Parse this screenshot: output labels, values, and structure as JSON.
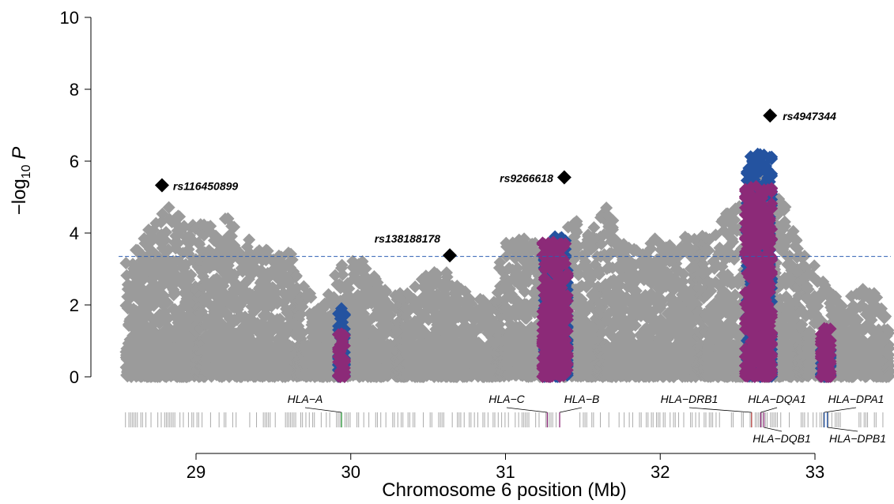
{
  "chart_data": {
    "type": "scatter",
    "title": "",
    "xlabel": "Chromosome 6 position (Mb)",
    "ylabel": {
      "prefix": "−log",
      "sub": "10",
      "suffix": " P"
    },
    "xlim": [
      28.5,
      33.5
    ],
    "ylim": [
      0,
      10
    ],
    "x_ticks": [
      "29",
      "30",
      "31",
      "32",
      "33"
    ],
    "y_ticks": [
      "0",
      "2",
      "4",
      "6",
      "8",
      "10"
    ],
    "threshold": 3.35,
    "colors": {
      "background_snps": "#9b9b9b",
      "gene_snps_a": "#2453a0",
      "gene_snps_b": "#8c2a78",
      "top_snps": "#000000",
      "threshold_line": "#2f5fb3",
      "gene_tick": "#aaaaaa"
    },
    "top_snps": [
      {
        "name": "rs116450899",
        "x": 28.78,
        "y": 5.33
      },
      {
        "name": "rs138188178",
        "x": 30.64,
        "y": 3.38
      },
      {
        "name": "rs9266618",
        "x": 31.38,
        "y": 5.55
      },
      {
        "name": "rs4947344",
        "x": 32.71,
        "y": 7.27
      }
    ],
    "hla_genes": [
      {
        "name": "HLA−A",
        "x": 29.94,
        "color": "#2a9a3a"
      },
      {
        "name": "HLA−C",
        "x": 31.27,
        "color": "#8c2a78"
      },
      {
        "name": "HLA−B",
        "x": 31.35,
        "color": "#8c2a78"
      },
      {
        "name": "HLA−DRB1",
        "x": 32.59,
        "color": "#c0504d"
      },
      {
        "name": "HLA−DQA1",
        "x": 32.65,
        "color": "#8c2a78"
      },
      {
        "name": "HLA−DQB1",
        "x": 32.67,
        "color": "#8c2a78"
      },
      {
        "name": "HLA−DPA1",
        "x": 33.06,
        "color": "#2453a0"
      },
      {
        "name": "HLA−DPB1",
        "x": 33.08,
        "color": "#2453a0"
      }
    ],
    "purple_clusters": [
      {
        "x": 29.94,
        "xmin": 29.92,
        "xmax": 29.96,
        "ymax": 1.2
      },
      {
        "x": 31.31,
        "xmin": 31.24,
        "xmax": 31.4,
        "ymax": 3.75
      },
      {
        "x": 32.62,
        "xmin": 32.55,
        "xmax": 32.72,
        "ymax": 5.3
      },
      {
        "x": 33.06,
        "xmin": 33.04,
        "xmax": 33.1,
        "ymax": 1.35
      }
    ],
    "blue_clusters": [
      {
        "x": 29.94,
        "xmin": 29.92,
        "xmax": 29.96,
        "ymax": 1.9
      },
      {
        "x": 31.32,
        "xmin": 31.25,
        "xmax": 31.4,
        "ymax": 3.9
      },
      {
        "x": 32.63,
        "xmin": 32.56,
        "xmax": 32.72,
        "ymax": 6.2
      },
      {
        "x": 33.06,
        "xmin": 33.04,
        "xmax": 33.1,
        "ymax": 0.85
      }
    ],
    "background_envelope": [
      [
        28.55,
        3.2
      ],
      [
        28.65,
        3.8
      ],
      [
        28.72,
        4.6
      ],
      [
        28.78,
        5.0
      ],
      [
        28.85,
        4.6
      ],
      [
        28.95,
        4.3
      ],
      [
        29.1,
        4.2
      ],
      [
        29.2,
        4.5
      ],
      [
        29.3,
        3.8
      ],
      [
        29.4,
        3.9
      ],
      [
        29.5,
        3.3
      ],
      [
        29.6,
        3.6
      ],
      [
        29.7,
        2.5
      ],
      [
        29.8,
        2.0
      ],
      [
        29.9,
        3.0
      ],
      [
        30.0,
        3.3
      ],
      [
        30.1,
        3.2
      ],
      [
        30.2,
        2.5
      ],
      [
        30.3,
        2.3
      ],
      [
        30.4,
        2.5
      ],
      [
        30.5,
        2.9
      ],
      [
        30.6,
        3.0
      ],
      [
        30.7,
        2.6
      ],
      [
        30.8,
        2.2
      ],
      [
        30.9,
        2.2
      ],
      [
        31.0,
        3.8
      ],
      [
        31.1,
        3.9
      ],
      [
        31.2,
        3.7
      ],
      [
        31.3,
        3.6
      ],
      [
        31.45,
        4.4
      ],
      [
        31.55,
        4.0
      ],
      [
        31.65,
        4.9
      ],
      [
        31.75,
        3.8
      ],
      [
        31.85,
        3.6
      ],
      [
        31.95,
        3.9
      ],
      [
        32.05,
        3.7
      ],
      [
        32.15,
        3.9
      ],
      [
        32.25,
        3.9
      ],
      [
        32.35,
        4.0
      ],
      [
        32.45,
        4.8
      ],
      [
        32.55,
        4.8
      ],
      [
        32.6,
        5.8
      ],
      [
        32.7,
        5.6
      ],
      [
        32.8,
        4.8
      ],
      [
        32.9,
        3.6
      ],
      [
        33.0,
        3.3
      ],
      [
        33.1,
        2.3
      ],
      [
        33.2,
        2.2
      ],
      [
        33.3,
        2.5
      ],
      [
        33.4,
        2.4
      ],
      [
        33.48,
        1.5
      ]
    ]
  }
}
